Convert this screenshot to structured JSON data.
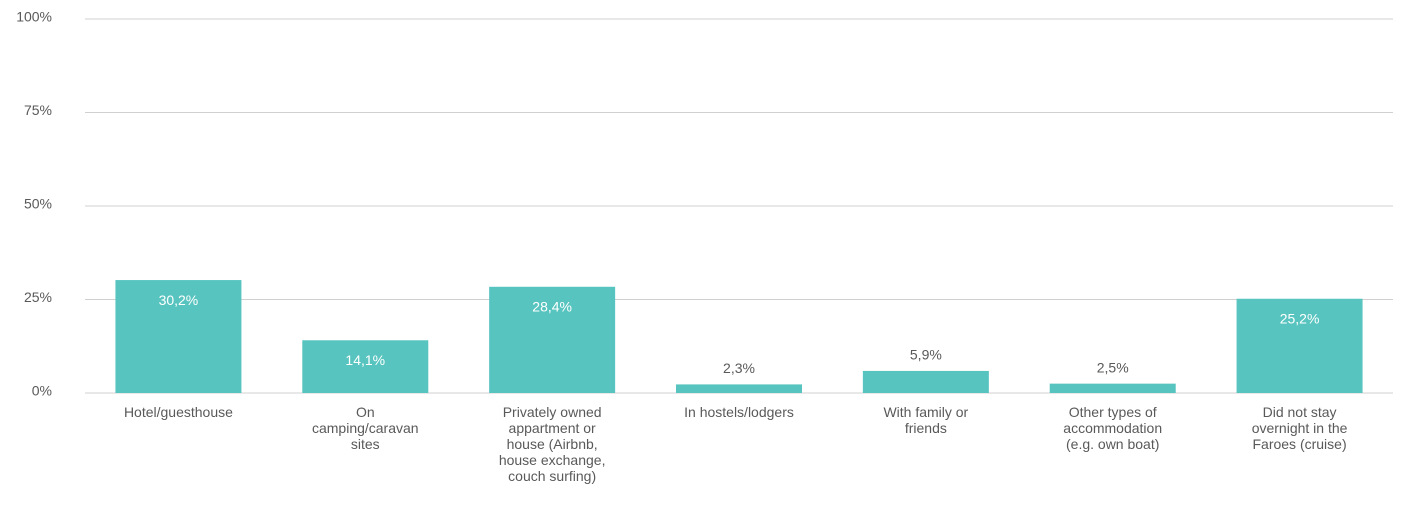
{
  "chart_data": {
    "type": "bar",
    "categories": [
      "Hotel/guesthouse",
      "On camping/caravan sites",
      "Privately owned appartment or house (Airbnb, house exchange, couch surfing)",
      "In hostels/lodgers",
      "With family or friends",
      "Other types of accommodation (e.g. own boat)",
      "Did not stay overnight in the Faroes (cruise)"
    ],
    "values": [
      30.2,
      14.1,
      28.4,
      2.3,
      5.9,
      2.5,
      25.2
    ],
    "value_labels": [
      "30,2%",
      "14,1%",
      "28,4%",
      "2,3%",
      "5,9%",
      "2,5%",
      "25,2%"
    ],
    "color": "#58c4bf",
    "ylim": [
      0,
      100
    ],
    "yticks": [
      {
        "value": 0,
        "label": "0%"
      },
      {
        "value": 25,
        "label": "25%"
      },
      {
        "value": 50,
        "label": "50%"
      },
      {
        "value": 75,
        "label": "75%"
      },
      {
        "value": 100,
        "label": "100%"
      }
    ],
    "grid": true
  }
}
